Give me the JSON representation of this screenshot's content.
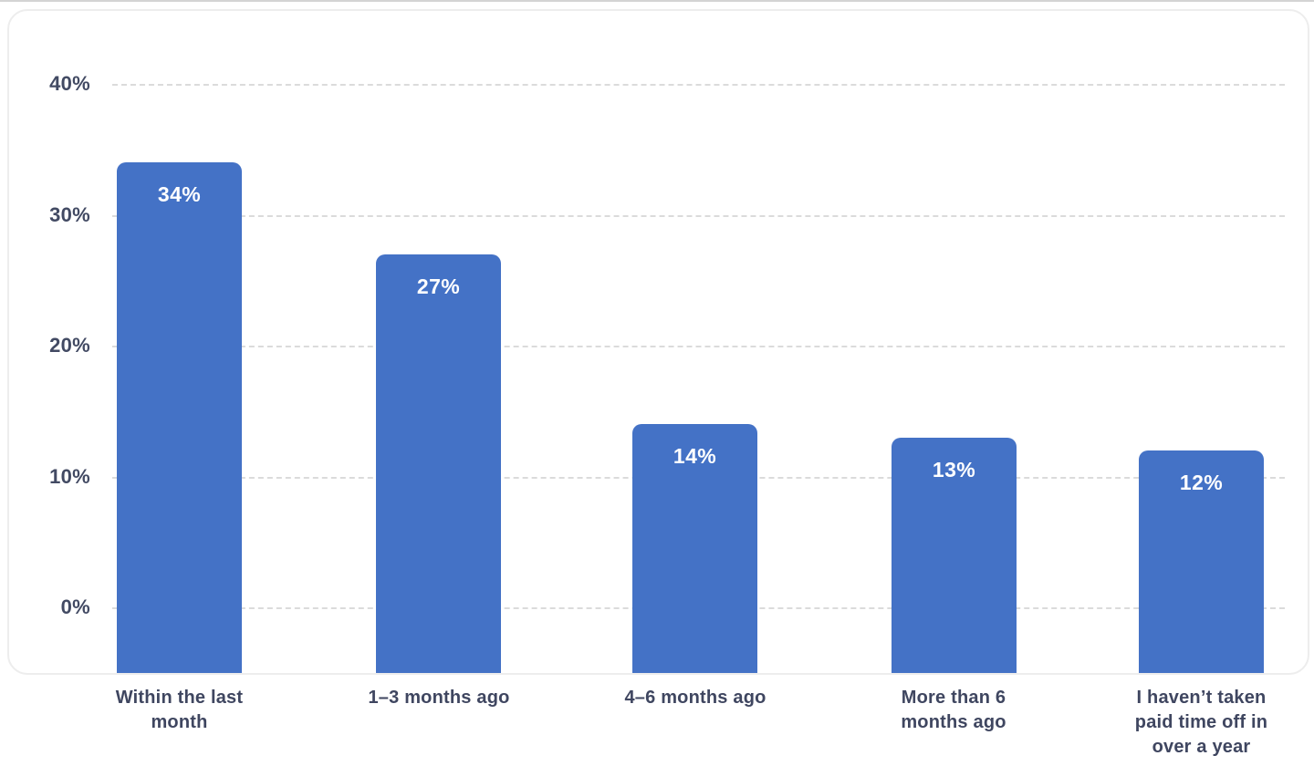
{
  "chart_data": {
    "type": "bar",
    "title": "",
    "xlabel": "",
    "ylabel": "",
    "categories": [
      "Within the last month",
      "1–3 months ago",
      "4–6 months ago",
      "More than 6 months ago",
      "I haven’t taken paid time off in over a year"
    ],
    "category_lines": [
      [
        "Within the last",
        "month"
      ],
      [
        "1–3 months ago"
      ],
      [
        "4–6 months ago"
      ],
      [
        "More than 6",
        "months ago"
      ],
      [
        "I haven’t taken",
        "paid time off in",
        "over a year"
      ]
    ],
    "values": [
      34,
      27,
      14,
      13,
      12
    ],
    "value_labels": [
      "34%",
      "27%",
      "14%",
      "13%",
      "12%"
    ],
    "yticks": [
      {
        "value": 40,
        "label": "40%"
      },
      {
        "value": 30,
        "label": "30%"
      },
      {
        "value": 20,
        "label": "20%"
      },
      {
        "value": 10,
        "label": "10%"
      },
      {
        "value": 0,
        "label": "0%"
      }
    ],
    "ylim": [
      -5,
      45.6
    ],
    "grid": "horizontal-dashed",
    "legend": "none",
    "colors": {
      "bar": "#4472C6",
      "bar_value_text": "#FFFFFF",
      "axis_text": "#424A63",
      "category_text": "#3F4660",
      "gridline": "#DBDBDB",
      "card_border": "#EDEDED",
      "background": "#FFFFFF"
    }
  }
}
